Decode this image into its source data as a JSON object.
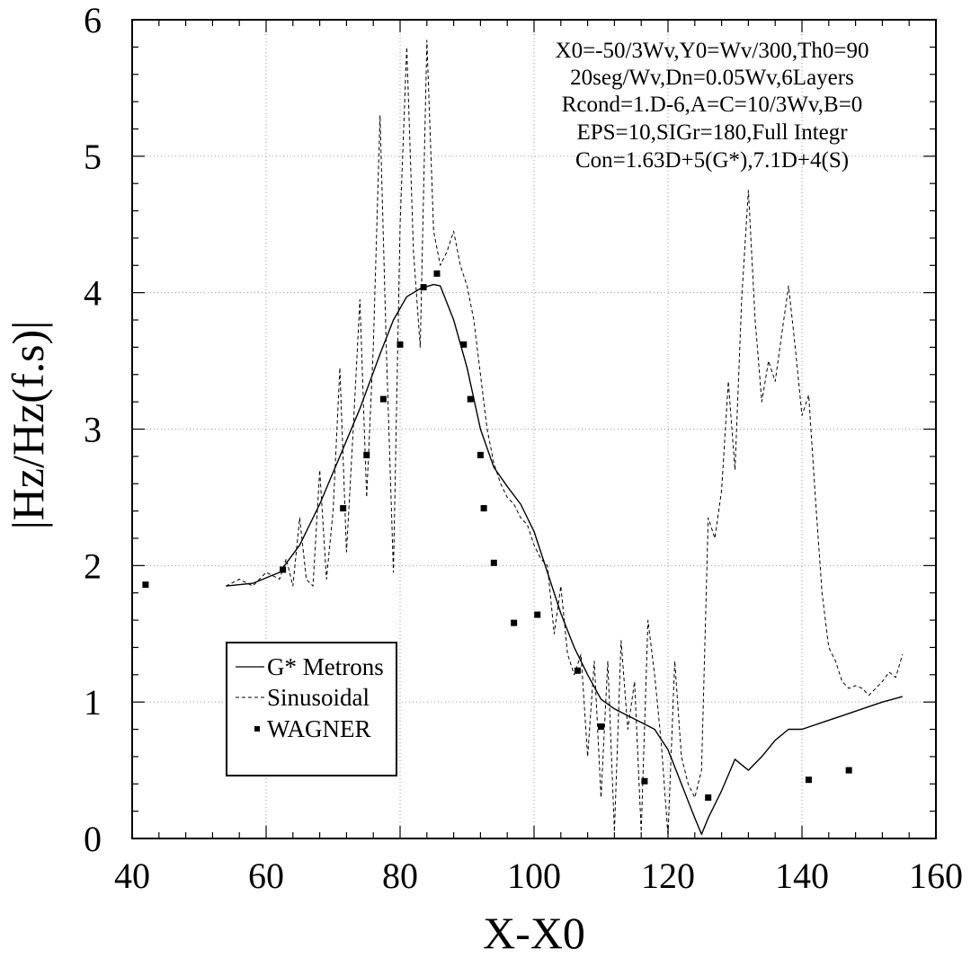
{
  "chart_data": {
    "type": "line",
    "xlabel": "X-X0",
    "ylabel": "|Hz/Hz(f.s)|",
    "xlim": [
      40,
      160
    ],
    "ylim": [
      0,
      6
    ],
    "xticks": [
      "40",
      "60",
      "80",
      "100",
      "120",
      "140",
      "160"
    ],
    "yticks": [
      "0",
      "1",
      "2",
      "3",
      "4",
      "5",
      "6"
    ],
    "grid": true,
    "legend_position": "bottom-left",
    "annotation_lines": [
      "X0=-50/3Wv,Y0=Wv/300,Th0=90",
      "20seg/Wv,Dn=0.05Wv,6Layers",
      "Rcond=1.D-6,A=C=10/3Wv,B=0",
      "EPS=10,SIGr=180,Full Integr",
      "Con=1.63D+5(G*),7.1D+4(S)"
    ],
    "series": [
      {
        "name": "G* Metrons",
        "style": "solid",
        "x": [
          54,
          58,
          62,
          65,
          68,
          71,
          74,
          77,
          79,
          81,
          83,
          85,
          86,
          88,
          90,
          92,
          94,
          96,
          98,
          100,
          102,
          104,
          106,
          108,
          110,
          112,
          114,
          116,
          118,
          120,
          122,
          124,
          125,
          126,
          128,
          130,
          132,
          134,
          136,
          138,
          140,
          143,
          146,
          149,
          152,
          155
        ],
        "y": [
          1.85,
          1.87,
          1.95,
          2.15,
          2.45,
          2.8,
          3.15,
          3.55,
          3.8,
          3.97,
          4.03,
          4.06,
          4.05,
          3.8,
          3.45,
          3.0,
          2.72,
          2.58,
          2.45,
          2.25,
          1.95,
          1.65,
          1.4,
          1.2,
          1.02,
          0.95,
          0.9,
          0.85,
          0.8,
          0.65,
          0.4,
          0.15,
          0.03,
          0.15,
          0.35,
          0.58,
          0.5,
          0.6,
          0.72,
          0.8,
          0.8,
          0.85,
          0.9,
          0.95,
          1.0,
          1.04
        ]
      },
      {
        "name": "Sinusoidal",
        "style": "dashed",
        "x": [
          54,
          56,
          58,
          60,
          62,
          63,
          64,
          65,
          66,
          67,
          68,
          69,
          70,
          71,
          72,
          73,
          74,
          75,
          76,
          77,
          78,
          79,
          80,
          81,
          82,
          83,
          84,
          85,
          86,
          87,
          88,
          89,
          90,
          91,
          92,
          93,
          94,
          95,
          96,
          97,
          98,
          99,
          100,
          101,
          102,
          103,
          104,
          105,
          106,
          107,
          108,
          109,
          110,
          111,
          112,
          113,
          114,
          115,
          116,
          117,
          118,
          119,
          120,
          121,
          122,
          123,
          124,
          125,
          126,
          127,
          128,
          129,
          130,
          131,
          132,
          133,
          134,
          135,
          136,
          137,
          138,
          139,
          140,
          141,
          142,
          143,
          144,
          145,
          146,
          147,
          148,
          149,
          150,
          151,
          152,
          153,
          154,
          155
        ],
        "y": [
          1.85,
          1.9,
          1.85,
          1.95,
          1.9,
          2.05,
          1.85,
          2.35,
          1.9,
          1.85,
          2.7,
          1.9,
          2.4,
          3.45,
          2.1,
          3.0,
          3.95,
          2.5,
          3.6,
          5.3,
          3.5,
          1.95,
          4.5,
          5.8,
          4.3,
          3.6,
          5.85,
          4.45,
          4.2,
          4.3,
          4.45,
          4.2,
          4.05,
          3.8,
          3.4,
          3.0,
          2.75,
          2.6,
          2.5,
          2.45,
          2.35,
          2.3,
          2.15,
          2.05,
          2.0,
          1.5,
          1.85,
          1.35,
          1.2,
          1.35,
          0.6,
          1.3,
          0.3,
          1.3,
          0.05,
          1.45,
          0.8,
          1.15,
          0.05,
          1.6,
          1.2,
          0.7,
          0.02,
          1.3,
          0.6,
          0.4,
          0.3,
          0.5,
          2.35,
          2.2,
          2.55,
          3.35,
          2.7,
          3.95,
          4.75,
          3.8,
          3.2,
          3.5,
          3.35,
          3.7,
          4.05,
          3.6,
          3.1,
          3.25,
          2.5,
          1.8,
          1.4,
          1.3,
          1.15,
          1.1,
          1.12,
          1.1,
          1.05,
          1.1,
          1.15,
          1.22,
          1.18,
          1.35
        ]
      },
      {
        "name": "WAGNER",
        "style": "markers",
        "x": [
          42,
          62.5,
          71.5,
          75,
          77.5,
          80,
          83.5,
          85.5,
          89.5,
          90.5,
          92,
          92.5,
          94,
          97,
          100.5,
          106.5,
          110,
          116.5,
          126,
          141,
          147
        ],
        "y": [
          1.86,
          1.97,
          2.42,
          2.81,
          3.22,
          3.62,
          4.04,
          4.14,
          3.62,
          3.22,
          2.81,
          2.42,
          2.02,
          1.58,
          1.64,
          1.23,
          0.82,
          0.42,
          0.3,
          0.43,
          0.5
        ]
      }
    ]
  }
}
